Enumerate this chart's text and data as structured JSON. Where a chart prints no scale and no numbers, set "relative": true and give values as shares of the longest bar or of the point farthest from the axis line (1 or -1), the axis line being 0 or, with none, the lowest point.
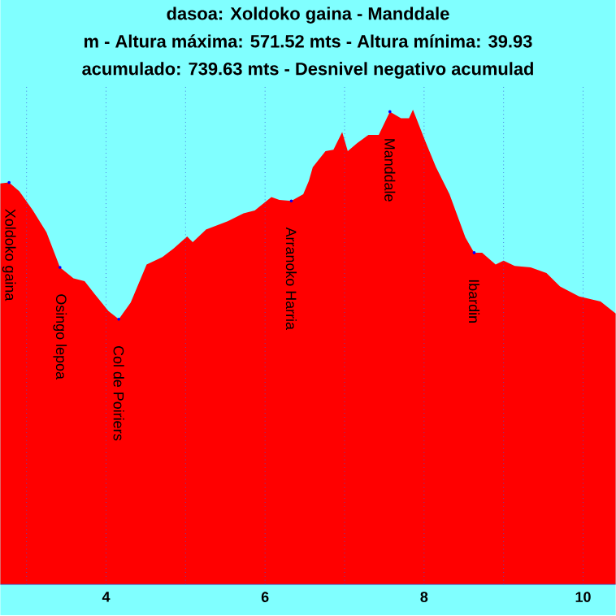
{
  "chart_data": {
    "type": "area",
    "relative": true,
    "title": "dasoa:  Xoldoko gaina - Manddale",
    "subtitle": "m - Altura máxima: 571.52 mts - Altura mínima: 39.93",
    "annotations": [
      "acumulado: 739.63 mts - Desnivel negativo acumulad",
      {
        "text": "Xoldoko gaina",
        "x": 2.78,
        "y": 0.847
      },
      {
        "text": "Osingo lepoa",
        "x": 3.42,
        "y": 0.668
      },
      {
        "text": "Col de Poiriers",
        "x": 4.16,
        "y": 0.559
      },
      {
        "text": "Arranoko Harria",
        "x": 6.33,
        "y": 0.808
      },
      {
        "text": "Manddale",
        "x": 7.57,
        "y": 0.996
      },
      {
        "text": "Ibardin",
        "x": 8.63,
        "y": 0.699
      }
    ],
    "x": [
      2.67,
      2.78,
      2.91,
      3.08,
      3.25,
      3.42,
      3.59,
      3.73,
      3.86,
      4.03,
      4.16,
      4.31,
      4.51,
      4.71,
      4.85,
      5.02,
      5.09,
      5.26,
      5.53,
      5.73,
      5.87,
      6.08,
      6.18,
      6.33,
      6.48,
      6.55,
      6.6,
      6.76,
      6.86,
      6.97,
      7.04,
      7.16,
      7.3,
      7.43,
      7.57,
      7.71,
      7.81,
      7.86,
      8.01,
      8.15,
      8.32,
      8.52,
      8.63,
      8.73,
      8.9,
      9.0,
      9.14,
      9.34,
      9.54,
      9.71,
      9.95,
      10.22,
      10.41
    ],
    "values": [
      0.845,
      0.847,
      0.828,
      0.788,
      0.742,
      0.668,
      0.645,
      0.639,
      0.611,
      0.576,
      0.559,
      0.594,
      0.674,
      0.69,
      0.708,
      0.733,
      0.721,
      0.748,
      0.765,
      0.782,
      0.788,
      0.816,
      0.81,
      0.808,
      0.822,
      0.85,
      0.879,
      0.913,
      0.916,
      0.953,
      0.913,
      0.93,
      0.947,
      0.947,
      0.996,
      0.982,
      0.982,
      1.0,
      0.936,
      0.879,
      0.822,
      0.731,
      0.699,
      0.699,
      0.674,
      0.682,
      0.671,
      0.668,
      0.656,
      0.628,
      0.607,
      0.596,
      0.571
    ],
    "color": "#ff0000",
    "xlim": [
      2.67,
      10.41
    ],
    "xticks": [
      {
        "value": 3,
        "label": null
      },
      4,
      {
        "value": 5,
        "label": null
      },
      6,
      {
        "value": 7,
        "label": null
      },
      8,
      {
        "value": 9,
        "label": null
      },
      10
    ],
    "grid": "x"
  }
}
